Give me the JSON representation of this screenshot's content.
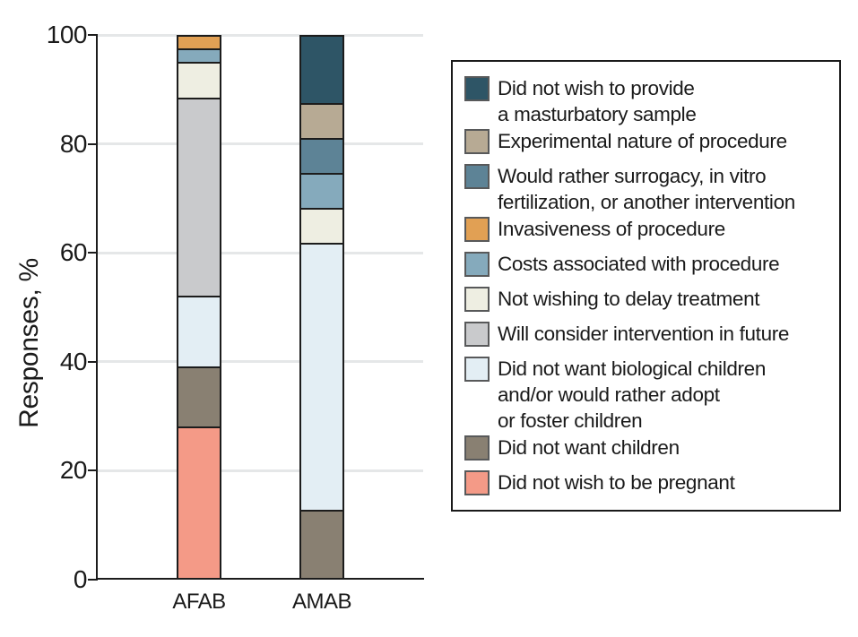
{
  "figure": {
    "background": "#ffffff",
    "text_color": "#1a1a1a",
    "axis_color": "#1c1c1c",
    "gridline_color": "#e5e7e8"
  },
  "chart_data": {
    "type": "bar",
    "subtype": "stacked-100pct-vertical",
    "title": "",
    "xlabel": "",
    "ylabel": "Responses, %",
    "ylim": [
      0,
      100
    ],
    "yticks": [
      0,
      20,
      40,
      60,
      80,
      100
    ],
    "grid": "horizontal",
    "legend_position": "right",
    "categories": [
      "AFAB",
      "AMAB"
    ],
    "series": [
      {
        "name": "Did not wish to provide a masturbatory sample",
        "label_lines": [
          "Did not wish to provide",
          "a masturbatory sample"
        ],
        "color": "#2e5566",
        "values": [
          0,
          12.5
        ]
      },
      {
        "name": "Experimental nature of procedure",
        "label_lines": [
          "Experimental nature of procedure"
        ],
        "color": "#b7aa94",
        "values": [
          0,
          6.25
        ]
      },
      {
        "name": "Would rather surrogacy, in vitro fertilization, or another intervention",
        "label_lines": [
          "Would rather surrogacy, in vitro",
          "fertilization, or another intervention"
        ],
        "color": "#5d8396",
        "values": [
          0,
          6.25
        ]
      },
      {
        "name": "Invasiveness of procedure",
        "label_lines": [
          "Invasiveness of procedure"
        ],
        "color": "#e1a054",
        "values": [
          2.2,
          0
        ]
      },
      {
        "name": "Costs associated with procedure",
        "label_lines": [
          "Costs associated with procedure"
        ],
        "color": "#85aabc",
        "values": [
          2.2,
          6.25
        ]
      },
      {
        "name": "Not wishing to delay treatment",
        "label_lines": [
          "Not wishing to delay treatment"
        ],
        "color": "#eeeee2",
        "values": [
          6.5,
          6.25
        ]
      },
      {
        "name": "Will consider intervention in future",
        "label_lines": [
          "Will consider intervention in future"
        ],
        "color": "#c9cacc",
        "values": [
          37.0,
          0
        ]
      },
      {
        "name": "Did not want biological children and/or would rather adopt or foster children",
        "label_lines": [
          "Did not want biological children",
          "and/or would rather adopt",
          "or foster children"
        ],
        "color": "#e3eef4",
        "values": [
          13.0,
          50
        ]
      },
      {
        "name": "Did not want children",
        "label_lines": [
          "Did not want children"
        ],
        "color": "#898072",
        "values": [
          10.9,
          12.5
        ]
      },
      {
        "name": "Did not wish to be pregnant",
        "label_lines": [
          "Did not wish to be pregnant"
        ],
        "color": "#f49a87",
        "values": [
          28.3,
          0
        ]
      }
    ]
  }
}
